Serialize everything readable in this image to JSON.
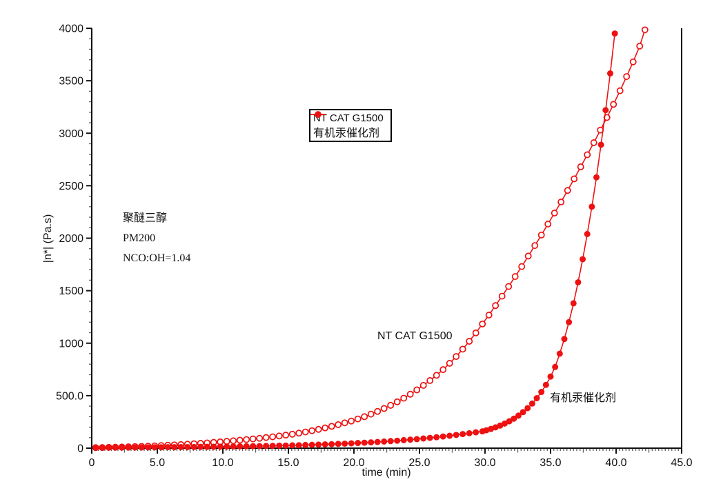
{
  "page": {
    "background": "#ffffff"
  },
  "colors": {
    "series_red": "#ee1111",
    "axis": "#111111",
    "major_tick": "#111111",
    "minor_tick": "#666666",
    "text": "#111111",
    "legend_border": "#000000",
    "marker_fill_open": "#ffffff"
  },
  "legend": {
    "items": [
      {
        "marker": "open-circle-line"
      },
      {
        "marker": "filled-circle-line"
      }
    ]
  },
  "chart_data": {
    "type": "line",
    "title": "",
    "xlabel": "time (min)",
    "ylabel": "|n*| (Pa.s)",
    "xlim": [
      0,
      45
    ],
    "ylim": [
      0,
      4000
    ],
    "grid": false,
    "legend_position": "inside-top-center",
    "x_ticks": [
      {
        "v": 0,
        "label": "0"
      },
      {
        "v": 5,
        "label": "5.0"
      },
      {
        "v": 10,
        "label": "10.0"
      },
      {
        "v": 15,
        "label": "15.0"
      },
      {
        "v": 20,
        "label": "20.0"
      },
      {
        "v": 25,
        "label": "25.0"
      },
      {
        "v": 30,
        "label": "30.0"
      },
      {
        "v": 35,
        "label": "35.0"
      },
      {
        "v": 40,
        "label": "40.0"
      },
      {
        "v": 45,
        "label": "45.0"
      }
    ],
    "y_ticks": [
      {
        "v": 0,
        "label": "0"
      },
      {
        "v": 500,
        "label": "500.0"
      },
      {
        "v": 1000,
        "label": "1000"
      },
      {
        "v": 1500,
        "label": "1500"
      },
      {
        "v": 2000,
        "label": "2000"
      },
      {
        "v": 2500,
        "label": "2500"
      },
      {
        "v": 3000,
        "label": "3000"
      },
      {
        "v": 3500,
        "label": "3500"
      },
      {
        "v": 4000,
        "label": "4000"
      }
    ],
    "x_minor_step": 0.25,
    "x_medium_step": 2.5,
    "y_minor_step": 100,
    "y_medium_step": 250,
    "series": [
      {
        "name": "NT CAT G1500",
        "marker": "open-circle",
        "color": "#ee1111",
        "points": [
          [
            0.3,
            5
          ],
          [
            0.8,
            6
          ],
          [
            1.3,
            8
          ],
          [
            1.8,
            9
          ],
          [
            2.3,
            11
          ],
          [
            2.8,
            13
          ],
          [
            3.3,
            15
          ],
          [
            3.8,
            17
          ],
          [
            4.3,
            19
          ],
          [
            4.8,
            22
          ],
          [
            5.3,
            25
          ],
          [
            5.8,
            28
          ],
          [
            6.3,
            31
          ],
          [
            6.8,
            34
          ],
          [
            7.3,
            38
          ],
          [
            7.8,
            42
          ],
          [
            8.3,
            46
          ],
          [
            8.8,
            50
          ],
          [
            9.3,
            55
          ],
          [
            9.8,
            60
          ],
          [
            10.3,
            65
          ],
          [
            10.8,
            70
          ],
          [
            11.3,
            76
          ],
          [
            11.8,
            82
          ],
          [
            12.3,
            88
          ],
          [
            12.8,
            94
          ],
          [
            13.3,
            101
          ],
          [
            13.8,
            108
          ],
          [
            14.3,
            116
          ],
          [
            14.8,
            124
          ],
          [
            15.3,
            133
          ],
          [
            15.8,
            143
          ],
          [
            16.3,
            154
          ],
          [
            16.8,
            166
          ],
          [
            17.3,
            179
          ],
          [
            17.8,
            193
          ],
          [
            18.3,
            208
          ],
          [
            18.8,
            224
          ],
          [
            19.3,
            241
          ],
          [
            19.8,
            258
          ],
          [
            20.3,
            278
          ],
          [
            20.8,
            300
          ],
          [
            21.3,
            324
          ],
          [
            21.8,
            350
          ],
          [
            22.3,
            378
          ],
          [
            22.8,
            408
          ],
          [
            23.3,
            441
          ],
          [
            23.8,
            476
          ],
          [
            24.3,
            514
          ],
          [
            24.8,
            555
          ],
          [
            25.3,
            598
          ],
          [
            25.8,
            644
          ],
          [
            26.3,
            694
          ],
          [
            26.8,
            748
          ],
          [
            27.3,
            808
          ],
          [
            27.8,
            873
          ],
          [
            28.3,
            943
          ],
          [
            28.8,
            1018
          ],
          [
            29.3,
            1098
          ],
          [
            29.8,
            1183
          ],
          [
            30.3,
            1268
          ],
          [
            30.8,
            1358
          ],
          [
            31.3,
            1448
          ],
          [
            31.8,
            1540
          ],
          [
            32.3,
            1635
          ],
          [
            32.8,
            1730
          ],
          [
            33.3,
            1830
          ],
          [
            33.8,
            1930
          ],
          [
            34.3,
            2030
          ],
          [
            34.8,
            2135
          ],
          [
            35.3,
            2240
          ],
          [
            35.8,
            2345
          ],
          [
            36.3,
            2455
          ],
          [
            36.8,
            2565
          ],
          [
            37.3,
            2680
          ],
          [
            37.8,
            2795
          ],
          [
            38.3,
            2910
          ],
          [
            38.8,
            3030
          ],
          [
            39.3,
            3150
          ],
          [
            39.8,
            3275
          ],
          [
            40.3,
            3405
          ],
          [
            40.8,
            3540
          ],
          [
            41.3,
            3680
          ],
          [
            41.8,
            3830
          ],
          [
            42.2,
            3985
          ]
        ]
      },
      {
        "name": "有机汞催化剂",
        "marker": "filled-circle",
        "color": "#ee1111",
        "points": [
          [
            0.3,
            4
          ],
          [
            0.8,
            4
          ],
          [
            1.3,
            5
          ],
          [
            1.8,
            5
          ],
          [
            2.3,
            5
          ],
          [
            2.8,
            6
          ],
          [
            3.3,
            6
          ],
          [
            3.8,
            7
          ],
          [
            4.3,
            7
          ],
          [
            4.8,
            8
          ],
          [
            5.3,
            8
          ],
          [
            5.8,
            9
          ],
          [
            6.3,
            9
          ],
          [
            6.8,
            10
          ],
          [
            7.3,
            10
          ],
          [
            7.8,
            11
          ],
          [
            8.3,
            12
          ],
          [
            8.8,
            12
          ],
          [
            9.3,
            13
          ],
          [
            9.8,
            14
          ],
          [
            10.3,
            15
          ],
          [
            10.8,
            16
          ],
          [
            11.3,
            17
          ],
          [
            11.8,
            18
          ],
          [
            12.3,
            19
          ],
          [
            12.8,
            20
          ],
          [
            13.3,
            21
          ],
          [
            13.8,
            22
          ],
          [
            14.3,
            24
          ],
          [
            14.8,
            25
          ],
          [
            15.3,
            27
          ],
          [
            15.8,
            28
          ],
          [
            16.3,
            30
          ],
          [
            16.8,
            32
          ],
          [
            17.3,
            34
          ],
          [
            17.8,
            36
          ],
          [
            18.3,
            38
          ],
          [
            18.8,
            41
          ],
          [
            19.3,
            43
          ],
          [
            19.8,
            46
          ],
          [
            20.3,
            49
          ],
          [
            20.8,
            52
          ],
          [
            21.3,
            55
          ],
          [
            21.8,
            59
          ],
          [
            22.3,
            63
          ],
          [
            22.8,
            67
          ],
          [
            23.3,
            71
          ],
          [
            23.8,
            76
          ],
          [
            24.3,
            81
          ],
          [
            24.8,
            86
          ],
          [
            25.3,
            92
          ],
          [
            25.8,
            98
          ],
          [
            26.3,
            104
          ],
          [
            26.8,
            111
          ],
          [
            27.3,
            118
          ],
          [
            27.8,
            126
          ],
          [
            28.3,
            134
          ],
          [
            28.8,
            142
          ],
          [
            29.3,
            151
          ],
          [
            29.8,
            160
          ],
          [
            30.1,
            170
          ],
          [
            30.45,
            183
          ],
          [
            30.8,
            198
          ],
          [
            31.15,
            215
          ],
          [
            31.5,
            234
          ],
          [
            31.85,
            256
          ],
          [
            32.2,
            281
          ],
          [
            32.55,
            310
          ],
          [
            32.9,
            343
          ],
          [
            33.25,
            381
          ],
          [
            33.6,
            425
          ],
          [
            33.95,
            476
          ],
          [
            34.3,
            535
          ],
          [
            34.65,
            603
          ],
          [
            35.0,
            682
          ],
          [
            35.35,
            773
          ],
          [
            35.7,
            900
          ],
          [
            36.05,
            1040
          ],
          [
            36.4,
            1200
          ],
          [
            36.75,
            1380
          ],
          [
            37.1,
            1580
          ],
          [
            37.45,
            1800
          ],
          [
            37.8,
            2040
          ],
          [
            38.15,
            2300
          ],
          [
            38.5,
            2580
          ],
          [
            38.85,
            2890
          ],
          [
            39.2,
            3220
          ],
          [
            39.55,
            3570
          ],
          [
            39.9,
            3950
          ]
        ]
      }
    ],
    "annotations": [
      {
        "name": "sample-info",
        "lines": [
          "聚醚三醇",
          "PM200",
          "NCO:OH=1.04"
        ]
      },
      {
        "name": "curve-label-g1500",
        "text": "NT CAT G1500"
      },
      {
        "name": "curve-label-mercury",
        "text": "有机汞催化剂"
      }
    ]
  }
}
